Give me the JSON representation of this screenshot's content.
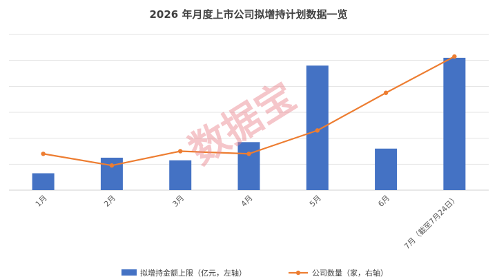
{
  "chart_data": {
    "type": "bar",
    "title": "2026 年月度上市公司拟增持计划数据一览",
    "categories": [
      "1月",
      "2月",
      "3月",
      "4月",
      "5月",
      "6月",
      "7月（截至7月24日）"
    ],
    "series": [
      {
        "name": "拟增持金额上限（亿元，左轴）",
        "type": "bar",
        "axis": "left",
        "color": "#4472C4",
        "values": [
          13,
          25,
          23,
          37,
          96,
          32,
          102
        ]
      },
      {
        "name": "公司数量（家，右轴）",
        "type": "line",
        "axis": "right",
        "color": "#ED7D31",
        "values": [
          28,
          19,
          30,
          28,
          46,
          75,
          103
        ]
      }
    ],
    "ylim_left": [
      0,
      120
    ],
    "ylim_right": [
      0,
      120
    ],
    "grid": true,
    "legend_position": "bottom"
  },
  "watermark": "数据宝"
}
